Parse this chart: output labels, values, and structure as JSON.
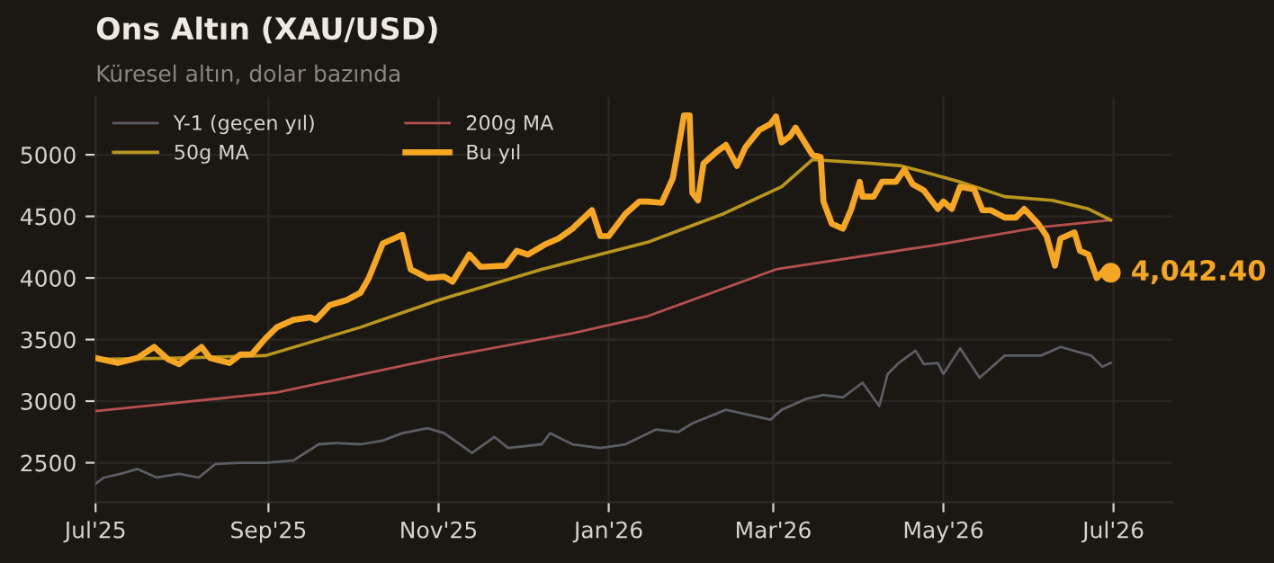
{
  "chart_data": {
    "type": "line",
    "title": "Ons Altın (XAU/USD)",
    "subtitle": "Küresel altın, dolar bazında",
    "xlim": [
      "2025-07-01",
      "2026-07-22"
    ],
    "xticks": [
      {
        "value": "2025-07-01",
        "label": "Jul'25"
      },
      {
        "value": "2025-09-01",
        "label": "Sep'25"
      },
      {
        "value": "2025-11-01",
        "label": "Nov'25"
      },
      {
        "value": "2026-01-01",
        "label": "Jan'26"
      },
      {
        "value": "2026-03-01",
        "label": "Mar'26"
      },
      {
        "value": "2026-05-01",
        "label": "May'26"
      },
      {
        "value": "2026-07-01",
        "label": "Jul'26"
      }
    ],
    "ylim": [
      2180,
      5470
    ],
    "yticks": [
      2500,
      3000,
      3500,
      4000,
      4500,
      5000
    ],
    "grid": true,
    "legend": "top left",
    "line_style": "solid",
    "marker": "none",
    "series": [
      {
        "name": "Y-1 (geçen yıl)",
        "color": "#5a5d63",
        "x": [
          "2025-07-01",
          "2025-07-04",
          "2025-07-10",
          "2025-07-16",
          "2025-07-23",
          "2025-07-31",
          "2025-08-07",
          "2025-08-13",
          "2025-08-22",
          "2025-08-31",
          "2025-09-10",
          "2025-09-19",
          "2025-09-25",
          "2025-10-04",
          "2025-10-12",
          "2025-10-19",
          "2025-10-28",
          "2025-11-03",
          "2025-11-13",
          "2025-11-21",
          "2025-11-26",
          "2025-12-08",
          "2025-12-11",
          "2025-12-19",
          "2025-12-29",
          "2026-01-07",
          "2026-01-18",
          "2026-01-26",
          "2026-01-31",
          "2026-02-12",
          "2026-02-28",
          "2026-03-04",
          "2026-03-13",
          "2026-03-19",
          "2026-03-26",
          "2026-04-02",
          "2026-04-08",
          "2026-04-11",
          "2026-04-15",
          "2026-04-21",
          "2026-04-24",
          "2026-04-29",
          "2026-05-01",
          "2026-05-07",
          "2026-05-14",
          "2026-05-23",
          "2026-05-31",
          "2026-06-05",
          "2026-06-12",
          "2026-06-23",
          "2026-06-27",
          "2026-06-30"
        ],
        "values": [
          2330,
          2380,
          2410,
          2450,
          2380,
          2410,
          2380,
          2490,
          2500,
          2500,
          2520,
          2650,
          2660,
          2650,
          2680,
          2740,
          2780,
          2740,
          2580,
          2710,
          2620,
          2650,
          2740,
          2650,
          2620,
          2650,
          2770,
          2750,
          2820,
          2930,
          2850,
          2930,
          3020,
          3050,
          3030,
          3150,
          2960,
          3220,
          3310,
          3410,
          3300,
          3310,
          3220,
          3430,
          3190,
          3370,
          3370,
          3370,
          3440,
          3370,
          3280,
          3310
        ]
      },
      {
        "name": "200g MA",
        "color": "#b5504f",
        "x": [
          "2025-07-01",
          "2025-09-04",
          "2025-11-01",
          "2025-12-19",
          "2026-01-15",
          "2026-03-02",
          "2026-04-29",
          "2026-06-04",
          "2026-06-30"
        ],
        "values": [
          2920,
          3070,
          3350,
          3550,
          3690,
          4070,
          4270,
          4410,
          4470
        ]
      },
      {
        "name": "50g MA",
        "color": "#b8961e",
        "x": [
          "2025-07-01",
          "2025-07-31",
          "2025-08-31",
          "2025-10-04",
          "2025-11-01",
          "2025-12-08",
          "2026-01-15",
          "2026-02-11",
          "2026-03-04",
          "2026-03-15",
          "2026-04-05",
          "2026-04-16",
          "2026-05-07",
          "2026-05-23",
          "2026-06-09",
          "2026-06-22",
          "2026-06-30"
        ],
        "values": [
          3340,
          3350,
          3370,
          3600,
          3820,
          4070,
          4290,
          4520,
          4740,
          4960,
          4930,
          4910,
          4780,
          4660,
          4630,
          4560,
          4470
        ]
      },
      {
        "name": "Bu yıl",
        "color": "#f5a623",
        "x": [
          "2025-07-01",
          "2025-07-09",
          "2025-07-16",
          "2025-07-22",
          "2025-07-27",
          "2025-07-31",
          "2025-08-08",
          "2025-08-11",
          "2025-08-18",
          "2025-08-22",
          "2025-08-26",
          "2025-08-31",
          "2025-09-04",
          "2025-09-10",
          "2025-09-16",
          "2025-09-18",
          "2025-09-23",
          "2025-09-29",
          "2025-10-04",
          "2025-10-07",
          "2025-10-12",
          "2025-10-16",
          "2025-10-19",
          "2025-10-22",
          "2025-10-28",
          "2025-11-03",
          "2025-11-06",
          "2025-11-12",
          "2025-11-16",
          "2025-11-25",
          "2025-11-29",
          "2025-12-03",
          "2025-12-09",
          "2025-12-14",
          "2025-12-19",
          "2025-12-26",
          "2025-12-29",
          "2026-01-01",
          "2026-01-07",
          "2026-01-12",
          "2026-01-15",
          "2026-01-20",
          "2026-01-24",
          "2026-01-26",
          "2026-01-28",
          "2026-01-30",
          "2026-01-31",
          "2026-02-02",
          "2026-02-04",
          "2026-02-09",
          "2026-02-12",
          "2026-02-16",
          "2026-02-19",
          "2026-02-24",
          "2026-02-28",
          "2026-03-02",
          "2026-03-04",
          "2026-03-07",
          "2026-03-09",
          "2026-03-15",
          "2026-03-18",
          "2026-03-19",
          "2026-03-22",
          "2026-03-26",
          "2026-03-29",
          "2026-04-01",
          "2026-04-02",
          "2026-04-06",
          "2026-04-09",
          "2026-04-14",
          "2026-04-17",
          "2026-04-20",
          "2026-04-24",
          "2026-04-29",
          "2026-05-01",
          "2026-05-04",
          "2026-05-07",
          "2026-05-12",
          "2026-05-15",
          "2026-05-18",
          "2026-05-23",
          "2026-05-27",
          "2026-05-30",
          "2026-06-04",
          "2026-06-07",
          "2026-06-10",
          "2026-06-12",
          "2026-06-17",
          "2026-06-19",
          "2026-06-22",
          "2026-06-25",
          "2026-06-28",
          "2026-06-30"
        ],
        "values": [
          3350,
          3310,
          3350,
          3440,
          3340,
          3300,
          3440,
          3350,
          3310,
          3380,
          3380,
          3510,
          3600,
          3660,
          3680,
          3660,
          3780,
          3820,
          3880,
          4000,
          4280,
          4320,
          4350,
          4070,
          4000,
          4010,
          3970,
          4190,
          4090,
          4100,
          4220,
          4190,
          4270,
          4320,
          4400,
          4550,
          4340,
          4340,
          4520,
          4620,
          4620,
          4610,
          4810,
          5060,
          5320,
          5320,
          4690,
          4630,
          4930,
          5030,
          5080,
          4910,
          5060,
          5200,
          5250,
          5310,
          5100,
          5150,
          5220,
          5000,
          4980,
          4620,
          4440,
          4400,
          4560,
          4780,
          4660,
          4660,
          4780,
          4780,
          4880,
          4760,
          4710,
          4560,
          4620,
          4560,
          4740,
          4720,
          4550,
          4550,
          4490,
          4490,
          4560,
          4440,
          4340,
          4100,
          4320,
          4370,
          4220,
          4190,
          4000,
          4070,
          4042.4
        ]
      }
    ],
    "annotations": [
      {
        "text": "4,042.40",
        "x": "2026-06-30",
        "y": 4042.4
      }
    ]
  }
}
